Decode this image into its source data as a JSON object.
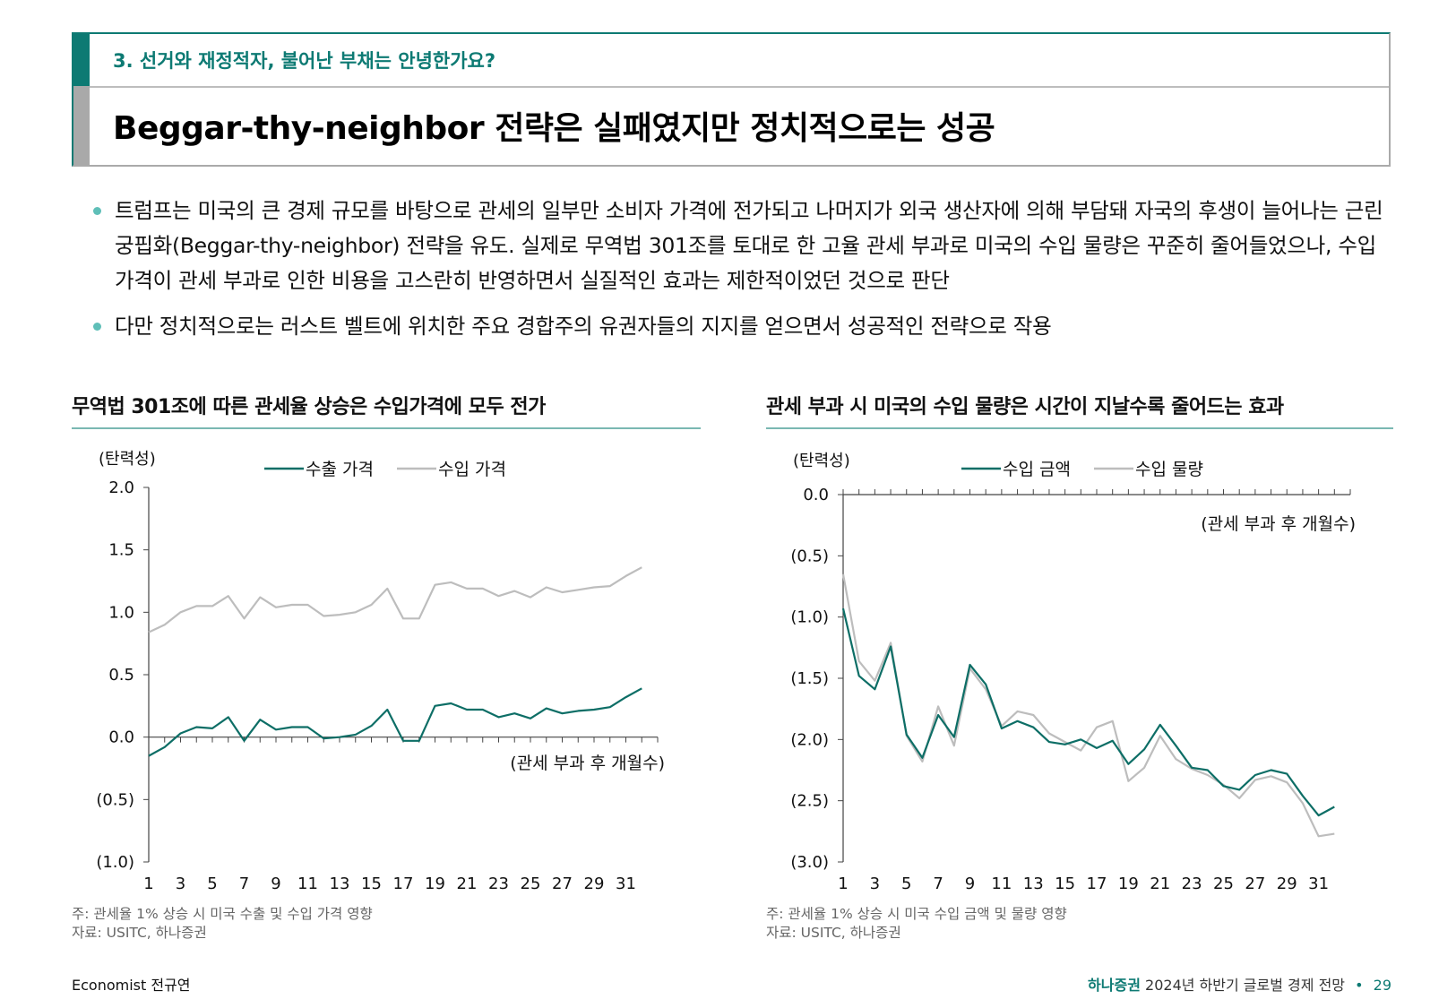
{
  "header": {
    "section_label": "3. 선거와 재정적자, 불어난 부채는 안녕한가요?",
    "title": "Beggar-thy-neighbor 전략은 실패였지만 정치적으로는 성공"
  },
  "bullets": [
    "트럼프는 미국의 큰 경제 규모를 바탕으로 관세의 일부만 소비자 가격에 전가되고 나머지가 외국 생산자에 의해 부담돼 자국의 후생이 늘어나는 근린궁핍화(Beggar-thy-neighbor) 전략을 유도. 실제로 무역법 301조를 토대로 한 고율 관세 부과로 미국의 수입 물량은 꾸준히 줄어들었으나, 수입 가격이 관세 부과로 인한 비용을 고스란히 반영하면서 실질적인 효과는 제한적이었던 것으로 판단",
    "다만 정치적으로는 러스트 벨트에 위치한 주요 경합주의 유권자들의 지지를 얻으면서 성공적인 전략으로 작용"
  ],
  "colors": {
    "teal": "#0d6e66",
    "gray": "#bdbdbd",
    "accent": "#0d7a73"
  },
  "chart_data": [
    {
      "type": "line",
      "title": "무역법 301조에 따른 관세율 상승은 수입가격에 모두 전가",
      "ylabel": "(탄력성)",
      "xlabel": "(관세 부과 후 개월수)",
      "ylim": [
        -1.0,
        2.0
      ],
      "yticks": [
        2.0,
        1.5,
        1.0,
        0.5,
        0.0,
        -0.5,
        -1.0
      ],
      "ytick_labels": [
        "2.0",
        "1.5",
        "1.0",
        "0.5",
        "0.0",
        "(0.5)",
        "(1.0)"
      ],
      "xtick_labels": [
        "1",
        "3",
        "5",
        "7",
        "9",
        "11",
        "13",
        "15",
        "17",
        "19",
        "21",
        "23",
        "25",
        "27",
        "29",
        "31"
      ],
      "x": [
        1,
        2,
        3,
        4,
        5,
        6,
        7,
        8,
        9,
        10,
        11,
        12,
        13,
        14,
        15,
        16,
        17,
        18,
        19,
        20,
        21,
        22,
        23,
        24,
        25,
        26,
        27,
        28,
        29,
        30,
        31,
        32,
        33
      ],
      "series": [
        {
          "name": "수출 가격",
          "color": "#0d6e66",
          "values": [
            -0.15,
            -0.08,
            0.03,
            0.08,
            0.07,
            0.16,
            -0.03,
            0.14,
            0.06,
            0.08,
            0.08,
            -0.01,
            0.0,
            0.02,
            0.09,
            0.22,
            -0.03,
            -0.03,
            0.25,
            0.27,
            0.22,
            0.22,
            0.16,
            0.19,
            0.15,
            0.23,
            0.19,
            0.21,
            0.22,
            0.24,
            0.32,
            0.39,
            null
          ]
        },
        {
          "name": "수입 가격",
          "color": "#bdbdbd",
          "values": [
            0.84,
            0.9,
            1.0,
            1.05,
            1.05,
            1.13,
            0.95,
            1.12,
            1.04,
            1.06,
            1.06,
            0.97,
            0.98,
            1.0,
            1.06,
            1.19,
            0.95,
            0.95,
            1.22,
            1.24,
            1.19,
            1.19,
            1.13,
            1.17,
            1.12,
            1.2,
            1.16,
            1.18,
            1.2,
            1.21,
            1.29,
            1.36,
            null
          ]
        }
      ],
      "note": "주: 관세율 1% 상승 시 미국 수출 및 수입 가격 영향",
      "source": "자료: USITC, 하나증권"
    },
    {
      "type": "line",
      "title": "관세 부과 시 미국의 수입 물량은 시간이 지날수록 줄어드는 효과",
      "ylabel": "(탄력성)",
      "xlabel": "(관세 부과 후 개월수)",
      "ylim": [
        -3.0,
        0.0
      ],
      "yticks": [
        0.0,
        -0.5,
        -1.0,
        -1.5,
        -2.0,
        -2.5,
        -3.0
      ],
      "ytick_labels": [
        "0.0",
        "(0.5)",
        "(1.0)",
        "(1.5)",
        "(2.0)",
        "(2.5)",
        "(3.0)"
      ],
      "xtick_labels": [
        "1",
        "3",
        "5",
        "7",
        "9",
        "11",
        "13",
        "15",
        "17",
        "19",
        "21",
        "23",
        "25",
        "27",
        "29",
        "31"
      ],
      "x": [
        1,
        2,
        3,
        4,
        5,
        6,
        7,
        8,
        9,
        10,
        11,
        12,
        13,
        14,
        15,
        16,
        17,
        18,
        19,
        20,
        21,
        22,
        23,
        24,
        25,
        26,
        27,
        28,
        29,
        30,
        31,
        32,
        33
      ],
      "series": [
        {
          "name": "수입 금액",
          "color": "#0d6e66",
          "values": [
            -0.93,
            -1.48,
            -1.59,
            -1.24,
            -1.96,
            -2.15,
            -1.8,
            -1.98,
            -1.39,
            -1.55,
            -1.91,
            -1.85,
            -1.9,
            -2.02,
            -2.04,
            -2.0,
            -2.07,
            -2.01,
            -2.2,
            -2.08,
            -1.88,
            -2.05,
            -2.23,
            -2.25,
            -2.38,
            -2.41,
            -2.29,
            -2.25,
            -2.28,
            -2.46,
            -2.62,
            -2.55,
            null
          ]
        },
        {
          "name": "수입 물량",
          "color": "#bdbdbd",
          "values": [
            -0.65,
            -1.36,
            -1.52,
            -1.21,
            -1.97,
            -2.18,
            -1.73,
            -2.05,
            -1.42,
            -1.59,
            -1.89,
            -1.77,
            -1.8,
            -1.95,
            -2.02,
            -2.09,
            -1.9,
            -1.85,
            -2.34,
            -2.23,
            -1.97,
            -2.16,
            -2.24,
            -2.29,
            -2.37,
            -2.48,
            -2.33,
            -2.3,
            -2.35,
            -2.52,
            -2.79,
            -2.77,
            null
          ]
        }
      ],
      "note": "주: 관세율 1% 상승 시 미국 수입 금액 및 물량 영향",
      "source": "자료: USITC, 하나증권"
    }
  ],
  "footer": {
    "author": "Economist 전규연",
    "brand": "하나증권",
    "pub": "2024년 하반기 글로벌 경제 전망",
    "dot": "•",
    "page": "29"
  }
}
